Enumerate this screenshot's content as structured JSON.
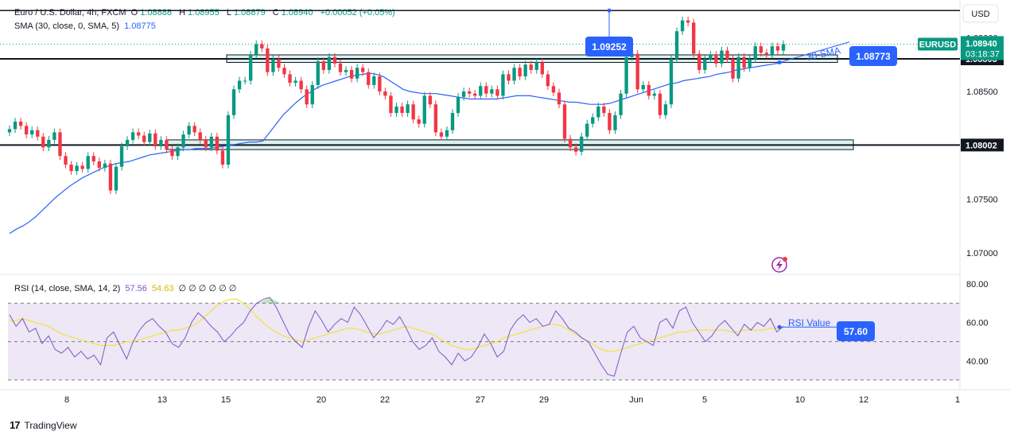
{
  "header": {
    "symbol": "Euro / U.S. Dollar, 4h, FXCM",
    "o_label": "O",
    "o": "1.08888",
    "h_label": "H",
    "h": "1.08955",
    "l_label": "L",
    "l": "1.08879",
    "c_label": "C",
    "c": "1.08940",
    "change": "+0.00052 (+0.05%)",
    "sma_label": "SMA (30, close, 0, SMA, 5)",
    "sma_value": "1.08775"
  },
  "rsi_header": {
    "label": "RSI (14, close, SMA, 14, 2)",
    "rsi_value": "57.56",
    "rsi_sma_value": "54.63",
    "markers": "∅ ∅ ∅ ∅ ∅ ∅"
  },
  "currency": "USD",
  "price_axis": {
    "ticks": [
      "1.09000",
      "1.08500",
      "1.07500",
      "1.07000"
    ],
    "tag_symbol": "EURUSD",
    "tag_price": "1.08940",
    "tag_countdown": "03:18:37",
    "level_high": "1.08803",
    "level_low": "1.08002"
  },
  "rsi_axis": {
    "ticks": [
      "80.00",
      "60.00",
      "40.00"
    ]
  },
  "time_axis": [
    "8",
    "13",
    "15",
    "20",
    "22",
    "27",
    "29",
    "Jun",
    "5",
    "10",
    "12",
    "1"
  ],
  "annotations": {
    "peak_label": "1.09252",
    "sma_label": "30-SMA",
    "sma_tag": "1.08773",
    "rsi_label": "RSI Value",
    "rsi_tag": "57.60"
  },
  "footer": {
    "brand": "TradingView"
  },
  "colors": {
    "up": "#089981",
    "down": "#f23645",
    "sma": "#2962ff",
    "rsi": "#7e57c2",
    "rsi_sma": "#f7e13a",
    "rsi_band": "#ede7f6",
    "tag_blue": "#2962ff",
    "zone": "#b2dfdb"
  },
  "chart_data": {
    "type": "candlestick",
    "symbol": "EURUSD",
    "timeframe": "4h",
    "y_range": [
      1.068,
      1.0935
    ],
    "horizontal_levels": [
      1.09252,
      1.08803,
      1.08002
    ],
    "zones": [
      [
        1.0877,
        1.0884
      ],
      [
        1.0796,
        1.0805
      ]
    ],
    "candles_close": [
      1.0815,
      1.0822,
      1.0818,
      1.081,
      1.0814,
      1.0808,
      1.0798,
      1.0805,
      1.0812,
      1.079,
      1.0782,
      1.0776,
      1.0781,
      1.0778,
      1.079,
      1.0785,
      1.0779,
      1.0783,
      1.0758,
      1.078,
      1.0799,
      1.0805,
      1.0812,
      1.0809,
      1.0803,
      1.0811,
      1.0799,
      1.0805,
      1.0796,
      1.079,
      1.0798,
      1.081,
      1.0818,
      1.0812,
      1.0805,
      1.0798,
      1.0808,
      1.0795,
      1.0782,
      1.0828,
      1.0852,
      1.086,
      1.086,
      1.0884,
      1.0894,
      1.089,
      1.0868,
      1.088,
      1.0872,
      1.0866,
      1.0858,
      1.086,
      1.0852,
      1.0838,
      1.0856,
      1.0878,
      1.087,
      1.0882,
      1.0876,
      1.0868,
      1.087,
      1.0862,
      1.0872,
      1.0868,
      1.0856,
      1.0864,
      1.085,
      1.0846,
      1.083,
      1.0836,
      1.083,
      1.0838,
      1.0824,
      1.082,
      1.0846,
      1.0838,
      1.0812,
      1.0808,
      1.0814,
      1.083,
      1.0845,
      1.085,
      1.0848,
      1.0846,
      1.0855,
      1.0848,
      1.0852,
      1.0846,
      1.0866,
      1.086,
      1.0872,
      1.0864,
      1.0875,
      1.087,
      1.0877,
      1.0866,
      1.0855,
      1.0849,
      1.0838,
      1.0806,
      1.0798,
      1.0794,
      1.0808,
      1.082,
      1.0826,
      1.0836,
      1.083,
      1.0814,
      1.0828,
      1.0848,
      1.0882,
      1.0885,
      1.0852,
      1.0856,
      1.0846,
      1.0848,
      1.0828,
      1.0838,
      1.088,
      1.0906,
      1.0916,
      1.0914,
      1.0885,
      1.087,
      1.088,
      1.0884,
      1.0876,
      1.0888,
      1.088,
      1.0862,
      1.0882,
      1.0872,
      1.088,
      1.0892,
      1.0886,
      1.0884,
      1.0892,
      1.0888,
      1.0894
    ],
    "sma_30": [
      1.0718,
      1.0722,
      1.0725,
      1.0729,
      1.0734,
      1.074,
      1.0746,
      1.0752,
      1.0757,
      1.0762,
      1.0766,
      1.077,
      1.0773,
      1.0776,
      1.0779,
      1.0781,
      1.0783,
      1.0784,
      1.0785,
      1.0787,
      1.0789,
      1.0791,
      1.0792,
      1.0793,
      1.0794,
      1.0795,
      1.0796,
      1.0796,
      1.0797,
      1.0797,
      1.0797,
      1.0798,
      1.0799,
      1.08,
      1.0801,
      1.0802,
      1.0803,
      1.0803,
      1.0804,
      1.0812,
      1.082,
      1.0828,
      1.0834,
      1.084,
      1.0845,
      1.0849,
      1.0853,
      1.0856,
      1.0858,
      1.086,
      1.0862,
      1.0864,
      1.0865,
      1.0866,
      1.0867,
      1.0866,
      1.0864,
      1.086,
      1.0856,
      1.0852,
      1.085,
      1.0849,
      1.0848,
      1.0848,
      1.0848,
      1.0847,
      1.0846,
      1.0845,
      1.0844,
      1.0843,
      1.0843,
      1.0843,
      1.0843,
      1.0843,
      1.0844,
      1.0845,
      1.0846,
      1.0846,
      1.0846,
      1.0845,
      1.0844,
      1.0843,
      1.0842,
      1.0841,
      1.084,
      1.084,
      1.0839,
      1.0838,
      1.0838,
      1.0838,
      1.0839,
      1.0841,
      1.0843,
      1.0845,
      1.0847,
      1.0849,
      1.0851,
      1.0853,
      1.0855,
      1.0857,
      1.0858,
      1.086,
      1.0861,
      1.0862,
      1.0863,
      1.0864,
      1.0866,
      1.0867,
      1.0868,
      1.087,
      1.0871,
      1.0872,
      1.0873,
      1.0874,
      1.0875,
      1.0876,
      1.0877
    ],
    "rsi": [
      64,
      58,
      62,
      55,
      57,
      49,
      53,
      46,
      44,
      47,
      42,
      45,
      41,
      43,
      38,
      52,
      55,
      48,
      41,
      50,
      56,
      60,
      62,
      58,
      55,
      49,
      47,
      52,
      60,
      65,
      62,
      58,
      55,
      50,
      53,
      57,
      60,
      66,
      70,
      72,
      73,
      68,
      61,
      54,
      50,
      47,
      58,
      66,
      61,
      55,
      59,
      62,
      60,
      68,
      64,
      58,
      52,
      56,
      61,
      59,
      63,
      57,
      50,
      46,
      48,
      52,
      45,
      42,
      38,
      44,
      40,
      42,
      47,
      54,
      49,
      42,
      45,
      56,
      61,
      64,
      60,
      62,
      58,
      59,
      66,
      62,
      57,
      55,
      52,
      50,
      44,
      38,
      33,
      32,
      44,
      55,
      58,
      52,
      50,
      48,
      60,
      62,
      57,
      66,
      68,
      60,
      55,
      50,
      53,
      58,
      61,
      57,
      53,
      59,
      56,
      60,
      58,
      62,
      55,
      58
    ],
    "rsi_sma": [
      61,
      61,
      62,
      61,
      60,
      59,
      58,
      56,
      54,
      53,
      52,
      51,
      50,
      49,
      48,
      48,
      48,
      49,
      50,
      50,
      51,
      52,
      53,
      54,
      55,
      56,
      56,
      57,
      58,
      60,
      63,
      66,
      69,
      71,
      72,
      72,
      70,
      67,
      63,
      60,
      57,
      55,
      53,
      52,
      51,
      50,
      51,
      52,
      53,
      54,
      55,
      56,
      57,
      57,
      56,
      55,
      54,
      54,
      55,
      56,
      57,
      58,
      57,
      56,
      55,
      54,
      52,
      50,
      48,
      47,
      46,
      46,
      47,
      48,
      49,
      50,
      52,
      53,
      54,
      55,
      56,
      57,
      58,
      59,
      59,
      58,
      56,
      54,
      52,
      50,
      48,
      46,
      45,
      45,
      46,
      47,
      48,
      49,
      50,
      51,
      52,
      53,
      54,
      55,
      55,
      56,
      56,
      56,
      56,
      56,
      56,
      55,
      55,
      56,
      56,
      56,
      56,
      57,
      57,
      57
    ],
    "rsi_bands": [
      30,
      50,
      70
    ],
    "rsi_range": [
      25,
      85
    ],
    "x_labels": [
      "8",
      "13",
      "15",
      "20",
      "22",
      "27",
      "29",
      "Jun",
      "5",
      "10",
      "12",
      "1"
    ]
  }
}
